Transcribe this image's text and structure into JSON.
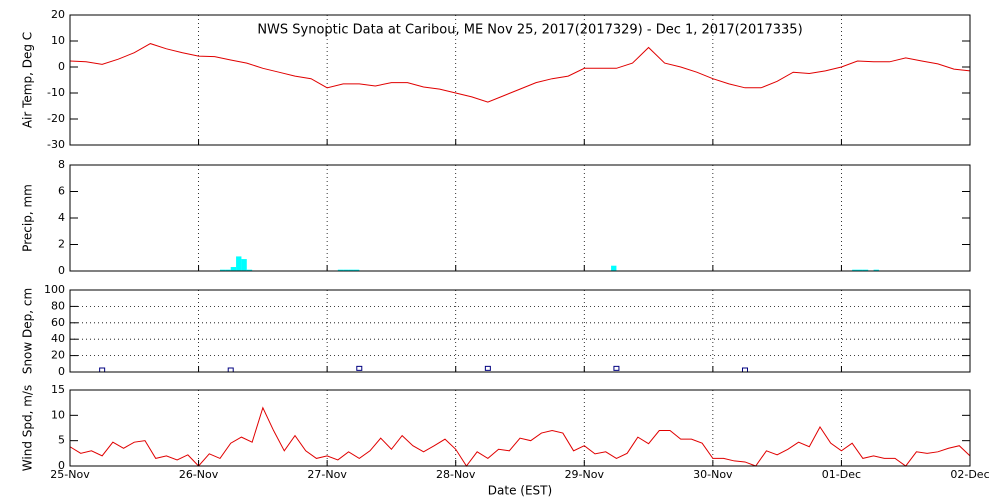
{
  "chart_data": [
    {
      "type": "line",
      "title": "NWS Synoptic Data at Caribou, ME   Nov 25, 2017(2017329) - Dec  1, 2017(2017335)",
      "y_label": "Air Temp, Deg C",
      "color": "#e00000",
      "x": [
        0,
        3,
        6,
        9,
        12,
        15,
        18,
        21,
        24,
        27,
        30,
        33,
        36,
        39,
        42,
        45,
        48,
        51,
        54,
        57,
        60,
        63,
        66,
        69,
        72,
        75,
        78,
        81,
        84,
        87,
        90,
        93,
        96,
        99,
        102,
        105,
        108,
        111,
        114,
        117,
        120,
        123,
        126,
        129,
        132,
        135,
        138,
        141,
        144,
        147,
        150,
        153,
        156,
        159,
        162,
        165,
        168
      ],
      "values": [
        2.3,
        2,
        1,
        3,
        5.5,
        9,
        7,
        5.5,
        4.2,
        4,
        2.7,
        1.5,
        -0.5,
        -2,
        -3.5,
        -4.5,
        -8,
        -6.5,
        -6.5,
        -7.3,
        -6,
        -6,
        -7.7,
        -8.5,
        -10,
        -11.5,
        -13.5,
        -11,
        -8.5,
        -6,
        -4.5,
        -3.5,
        -0.5,
        -0.5,
        -0.5,
        1.5,
        7.5,
        1.5,
        0,
        -2,
        -4.5,
        -6.5,
        -8,
        -8,
        -5.5,
        -2,
        -2.5,
        -1.5,
        0,
        2.3,
        2,
        2,
        3.5,
        2.3,
        1.2,
        -0.8,
        -1.5
      ],
      "xlim": [
        0,
        168
      ],
      "ylim": [
        -30,
        20
      ],
      "yticks": [
        -30,
        -20,
        -10,
        0,
        10,
        20
      ],
      "grid": "x"
    },
    {
      "type": "bar",
      "y_label": "Precip, mm",
      "color": "#00ffff",
      "x": [
        28,
        29,
        30,
        31,
        32,
        33,
        50,
        51,
        52,
        53,
        101,
        146,
        147,
        148,
        150
      ],
      "values": [
        0.1,
        0.1,
        0.3,
        1.1,
        0.9,
        0.1,
        0.1,
        0.1,
        0.1,
        0.1,
        0.4,
        0.1,
        0.1,
        0.1,
        0.1
      ],
      "xlim": [
        0,
        168
      ],
      "ylim": [
        0,
        8
      ],
      "yticks": [
        0,
        2,
        4,
        6,
        8
      ],
      "grid": "x"
    },
    {
      "type": "scatter",
      "y_label": "Snow Dep, cm",
      "color": "#000080",
      "x": [
        6,
        30,
        54,
        78,
        102,
        126
      ],
      "values": [
        0,
        0,
        2,
        2,
        2,
        0
      ],
      "xlim": [
        0,
        168
      ],
      "ylim": [
        0,
        100
      ],
      "yticks": [
        0,
        20,
        40,
        60,
        80,
        100
      ],
      "grid": "xy"
    },
    {
      "type": "line",
      "y_label": "Wind Spd, m/s",
      "x_label": "Date (EST)",
      "color": "#e00000",
      "x": [
        0,
        2,
        4,
        6,
        8,
        10,
        12,
        14,
        16,
        18,
        20,
        22,
        24,
        26,
        28,
        30,
        32,
        34,
        36,
        38,
        40,
        42,
        44,
        46,
        48,
        50,
        52,
        54,
        56,
        58,
        60,
        62,
        64,
        66,
        68,
        70,
        72,
        74,
        76,
        78,
        80,
        82,
        84,
        86,
        88,
        90,
        92,
        94,
        96,
        98,
        100,
        102,
        104,
        106,
        108,
        110,
        112,
        114,
        116,
        118,
        120,
        122,
        124,
        126,
        128,
        130,
        132,
        134,
        136,
        138,
        140,
        142,
        144,
        146,
        148,
        150,
        152,
        154,
        156,
        158,
        160,
        162,
        164,
        166,
        168
      ],
      "values": [
        3.8,
        2.5,
        3,
        2,
        4.7,
        3.5,
        4.7,
        5,
        1.5,
        2,
        1.2,
        2.2,
        0,
        2.4,
        1.5,
        4.5,
        5.7,
        4.7,
        11.5,
        7,
        3,
        6,
        3,
        1.5,
        2,
        1.2,
        2.8,
        1.5,
        3,
        5.5,
        3.3,
        6,
        4,
        2.8,
        4,
        5.3,
        3.3,
        0,
        2.8,
        1.5,
        3.3,
        3,
        5.5,
        5,
        6.5,
        7,
        6.5,
        3,
        4,
        2.4,
        2.8,
        1.5,
        2.5,
        5.7,
        4.4,
        7,
        7,
        5.3,
        5.3,
        4.5,
        1.5,
        1.5,
        1,
        0.8,
        0,
        3,
        2.2,
        3.3,
        4.7,
        3.8,
        7.7,
        4.5,
        3,
        4.5,
        1.5,
        2,
        1.5,
        1.5,
        0,
        2.8,
        2.5,
        2.8,
        3.5,
        4,
        2
      ],
      "xlim": [
        0,
        168
      ],
      "ylim": [
        0,
        15
      ],
      "yticks": [
        0,
        5,
        10,
        15
      ],
      "grid": "x",
      "xticks": [
        {
          "value": 0,
          "label": "25-Nov"
        },
        {
          "value": 24,
          "label": "26-Nov"
        },
        {
          "value": 48,
          "label": "27-Nov"
        },
        {
          "value": 72,
          "label": "28-Nov"
        },
        {
          "value": 96,
          "label": "29-Nov"
        },
        {
          "value": 120,
          "label": "30-Nov"
        },
        {
          "value": 144,
          "label": "01-Dec"
        },
        {
          "value": 168,
          "label": "02-Dec"
        }
      ]
    }
  ]
}
